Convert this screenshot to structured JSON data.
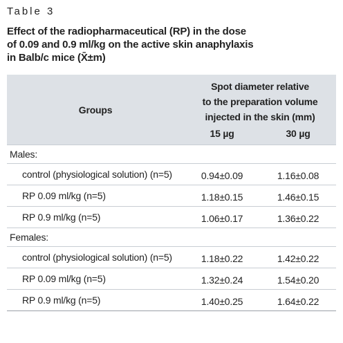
{
  "caption": "Table 3",
  "title": [
    "Effect of the radiopharmaceutical (RP) in the dose",
    "of 0.09 and 0.9 ml/kg on the active skin anaphylaxis",
    "in Balb/c mice (X̄±m)"
  ],
  "table": {
    "header": {
      "groups": "Groups",
      "measure": [
        "Spot diameter relative",
        "to the preparation volume",
        "injected in the skin (mm)"
      ],
      "doses": [
        "15 µg",
        "30 µg"
      ]
    },
    "sections": [
      {
        "label": "Males:",
        "rows": [
          [
            "control (physiological solution) (n=5)",
            "0.94±0.09",
            "1.16±0.08"
          ],
          [
            "RP 0.09 ml/kg (n=5)",
            "1.18±0.15",
            "1.46±0.15"
          ],
          [
            "RP 0.9 ml/kg (n=5)",
            "1.06±0.17",
            "1.36±0.22"
          ]
        ]
      },
      {
        "label": "Females:",
        "rows": [
          [
            "control (physiological solution) (n=5)",
            "1.18±0.22",
            "1.42±0.22"
          ],
          [
            "RP 0.09 ml/kg (n=5)",
            "1.32±0.24",
            "1.54±0.20"
          ],
          [
            "RP 0.9 ml/kg (n=5)",
            "1.40±0.25",
            "1.64±0.22"
          ]
        ]
      }
    ]
  }
}
